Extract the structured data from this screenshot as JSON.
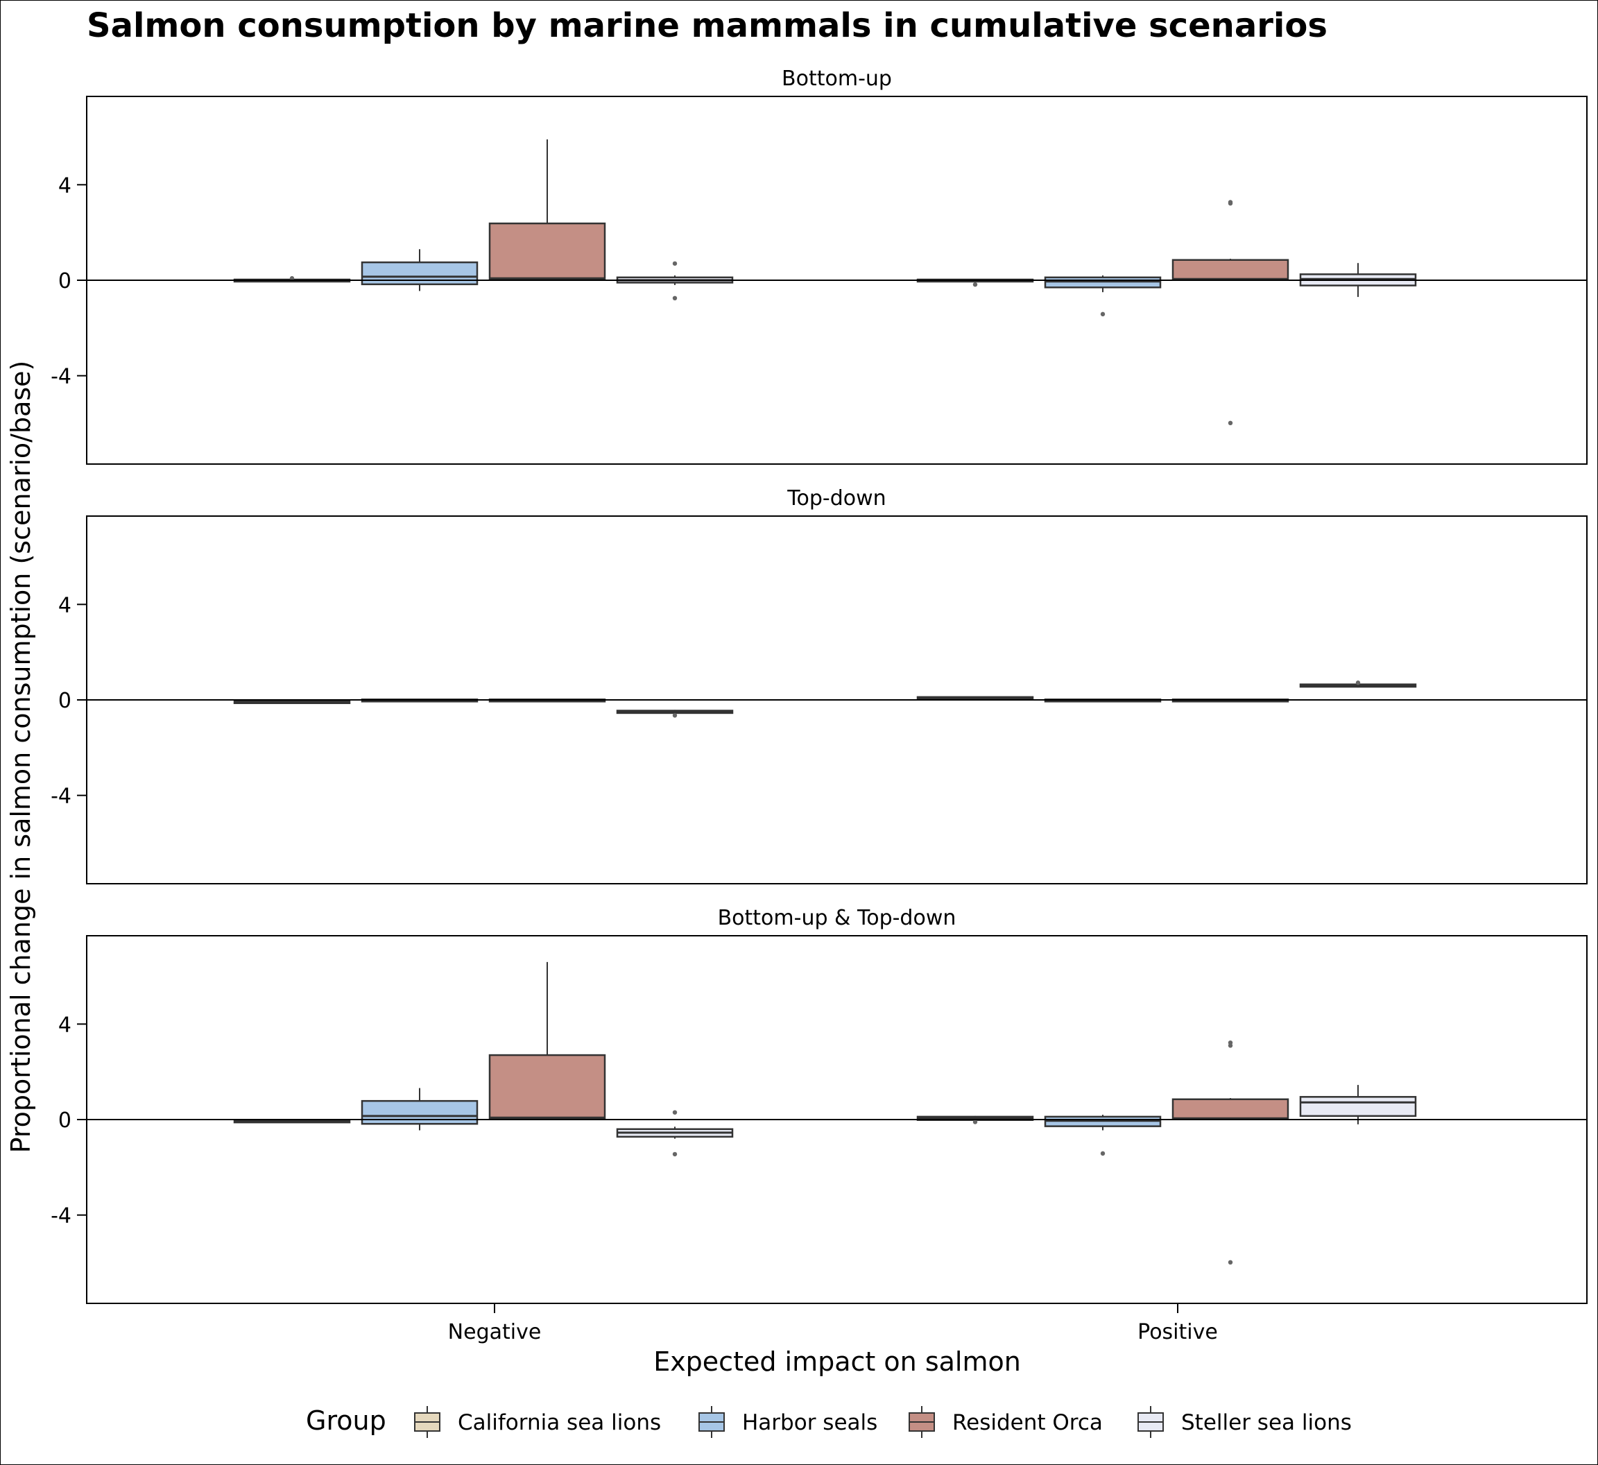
{
  "chart_data": {
    "type": "box",
    "title": "Salmon consumption by marine mammals in cumulative scenarios",
    "xlabel": "Expected impact on salmon",
    "ylabel": "Proportional change in salmon consumption (scenario/base)",
    "categories": [
      "Negative",
      "Positive"
    ],
    "ylim": [
      -7.7,
      7.7
    ],
    "yticks": [
      -4,
      0,
      4
    ],
    "ytick_labels": [
      "-4",
      "0",
      "4"
    ],
    "reference_line_y": 0,
    "legend": {
      "title": "Group",
      "position": "bottom",
      "entries": [
        {
          "name": "California sea lions",
          "color": "#e5d8bd"
        },
        {
          "name": "Harbor seals",
          "color": "#a7c6e6"
        },
        {
          "name": "Resident Orca",
          "color": "#c48f85"
        },
        {
          "name": "Steller sea lions",
          "color": "#e8eaf4"
        }
      ]
    },
    "box_edge_color": "#333333",
    "facets": [
      {
        "title": "Bottom-up",
        "boxes": [
          {
            "category": "Negative",
            "group": "California sea lions",
            "q1": -0.03,
            "median": 0.0,
            "q3": 0.03,
            "whisker_low": -0.05,
            "whisker_high": 0.05,
            "outliers": [
              0.08
            ]
          },
          {
            "category": "Negative",
            "group": "Harbor seals",
            "q1": -0.17,
            "median": 0.15,
            "q3": 0.75,
            "whisker_low": -0.45,
            "whisker_high": 1.3,
            "outliers": []
          },
          {
            "category": "Negative",
            "group": "Resident Orca",
            "q1": 0.05,
            "median": 0.08,
            "q3": 2.38,
            "whisker_low": 0.0,
            "whisker_high": 5.9,
            "outliers": []
          },
          {
            "category": "Negative",
            "group": "Steller sea lions",
            "q1": -0.1,
            "median": 0.0,
            "q3": 0.12,
            "whisker_low": -0.2,
            "whisker_high": 0.2,
            "outliers": [
              0.7,
              -0.75
            ]
          },
          {
            "category": "Positive",
            "group": "California sea lions",
            "q1": -0.03,
            "median": 0.0,
            "q3": 0.03,
            "whisker_low": -0.05,
            "whisker_high": 0.05,
            "outliers": [
              -0.18
            ]
          },
          {
            "category": "Positive",
            "group": "Harbor seals",
            "q1": -0.3,
            "median": -0.05,
            "q3": 0.12,
            "whisker_low": -0.5,
            "whisker_high": 0.2,
            "outliers": [
              -1.42
            ]
          },
          {
            "category": "Positive",
            "group": "Resident Orca",
            "q1": 0.02,
            "median": 0.05,
            "q3": 0.85,
            "whisker_low": 0.0,
            "whisker_high": 0.9,
            "outliers": [
              3.27,
              3.22,
              -5.98
            ]
          },
          {
            "category": "Positive",
            "group": "Steller sea lions",
            "q1": -0.22,
            "median": 0.05,
            "q3": 0.25,
            "whisker_low": -0.7,
            "whisker_high": 0.72,
            "outliers": []
          }
        ]
      },
      {
        "title": "Top-down",
        "boxes": [
          {
            "category": "Negative",
            "group": "California sea lions",
            "q1": -0.12,
            "median": -0.08,
            "q3": -0.05,
            "whisker_low": -0.12,
            "whisker_high": -0.05,
            "outliers": []
          },
          {
            "category": "Negative",
            "group": "Harbor seals",
            "q1": -0.02,
            "median": 0.0,
            "q3": 0.02,
            "whisker_low": -0.02,
            "whisker_high": 0.02,
            "outliers": []
          },
          {
            "category": "Negative",
            "group": "Resident Orca",
            "q1": -0.02,
            "median": 0.0,
            "q3": 0.02,
            "whisker_low": -0.02,
            "whisker_high": 0.02,
            "outliers": []
          },
          {
            "category": "Negative",
            "group": "Steller sea lions",
            "q1": -0.55,
            "median": -0.5,
            "q3": -0.45,
            "whisker_low": -0.6,
            "whisker_high": -0.42,
            "outliers": [
              -0.65
            ]
          },
          {
            "category": "Positive",
            "group": "California sea lions",
            "q1": 0.05,
            "median": 0.08,
            "q3": 0.12,
            "whisker_low": 0.03,
            "whisker_high": 0.14,
            "outliers": []
          },
          {
            "category": "Positive",
            "group": "Harbor seals",
            "q1": -0.02,
            "median": 0.0,
            "q3": 0.02,
            "whisker_low": -0.02,
            "whisker_high": 0.02,
            "outliers": []
          },
          {
            "category": "Positive",
            "group": "Resident Orca",
            "q1": -0.02,
            "median": 0.0,
            "q3": 0.02,
            "whisker_low": -0.02,
            "whisker_high": 0.02,
            "outliers": []
          },
          {
            "category": "Positive",
            "group": "Steller sea lions",
            "q1": 0.55,
            "median": 0.6,
            "q3": 0.65,
            "whisker_low": 0.52,
            "whisker_high": 0.68,
            "outliers": [
              0.72
            ]
          }
        ]
      },
      {
        "title": "Bottom-up & Top-down",
        "boxes": [
          {
            "category": "Negative",
            "group": "California sea lions",
            "q1": -0.12,
            "median": -0.05,
            "q3": -0.02,
            "whisker_low": -0.12,
            "whisker_high": 0.02,
            "outliers": []
          },
          {
            "category": "Negative",
            "group": "Harbor seals",
            "q1": -0.18,
            "median": 0.15,
            "q3": 0.78,
            "whisker_low": -0.45,
            "whisker_high": 1.32,
            "outliers": []
          },
          {
            "category": "Negative",
            "group": "Resident Orca",
            "q1": 0.05,
            "median": 0.08,
            "q3": 2.7,
            "whisker_low": 0.0,
            "whisker_high": 6.6,
            "outliers": []
          },
          {
            "category": "Negative",
            "group": "Steller sea lions",
            "q1": -0.72,
            "median": -0.55,
            "q3": -0.4,
            "whisker_low": -0.8,
            "whisker_high": -0.3,
            "outliers": [
              0.3,
              -1.45
            ]
          },
          {
            "category": "Positive",
            "group": "California sea lions",
            "q1": -0.02,
            "median": 0.05,
            "q3": 0.12,
            "whisker_low": -0.05,
            "whisker_high": 0.15,
            "outliers": [
              -0.1
            ]
          },
          {
            "category": "Positive",
            "group": "Harbor seals",
            "q1": -0.28,
            "median": -0.05,
            "q3": 0.12,
            "whisker_low": -0.45,
            "whisker_high": 0.2,
            "outliers": [
              -1.42
            ]
          },
          {
            "category": "Positive",
            "group": "Resident Orca",
            "q1": 0.02,
            "median": 0.05,
            "q3": 0.85,
            "whisker_low": 0.0,
            "whisker_high": 0.9,
            "outliers": [
              3.22,
              3.1,
              -5.98
            ]
          },
          {
            "category": "Positive",
            "group": "Steller sea lions",
            "q1": 0.15,
            "median": 0.72,
            "q3": 0.95,
            "whisker_low": -0.2,
            "whisker_high": 1.45,
            "outliers": []
          }
        ]
      }
    ]
  }
}
